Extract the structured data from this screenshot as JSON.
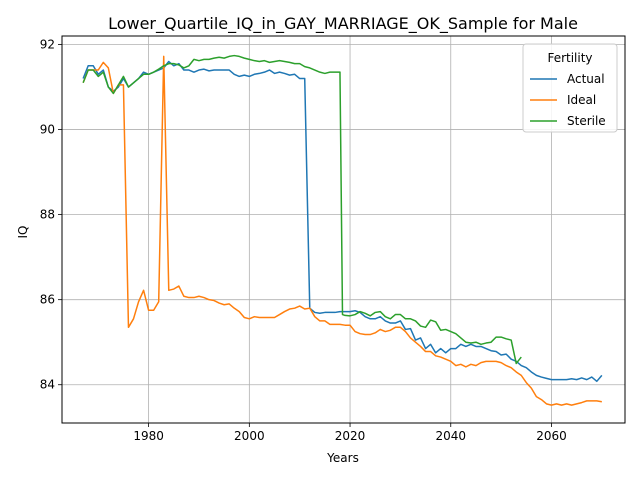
{
  "chart_data": {
    "type": "line",
    "title": "Lower_Quartile_IQ_in_GAY_MARRIAGE_OK_Sample for Male",
    "xlabel": "Years",
    "ylabel": "IQ",
    "xlim": [
      1962.8,
      2074.6
    ],
    "ylim": [
      83.1,
      92.2
    ],
    "xticks": [
      1980,
      2000,
      2020,
      2040,
      2060
    ],
    "yticks": [
      84,
      86,
      88,
      90,
      92
    ],
    "grid": true,
    "legend": {
      "title": "Fertility",
      "placement": "top-right"
    },
    "series": [
      {
        "name": "Actual",
        "color": "#1f77b4",
        "points": [
          [
            1967,
            91.2
          ],
          [
            1968,
            91.5
          ],
          [
            1969,
            91.5
          ],
          [
            1970,
            91.3
          ],
          [
            1971,
            91.4
          ],
          [
            1972,
            91.0
          ],
          [
            1973,
            90.9
          ],
          [
            1974,
            91.0
          ],
          [
            1975,
            91.2
          ],
          [
            1976,
            91.0
          ],
          [
            1977,
            91.1
          ],
          [
            1978,
            91.2
          ],
          [
            1979,
            91.35
          ],
          [
            1980,
            91.3
          ],
          [
            1981,
            91.35
          ],
          [
            1982,
            91.4
          ],
          [
            1983,
            91.45
          ],
          [
            1984,
            91.6
          ],
          [
            1985,
            91.5
          ],
          [
            1986,
            91.55
          ],
          [
            1987,
            91.4
          ],
          [
            1988,
            91.4
          ],
          [
            1989,
            91.35
          ],
          [
            1990,
            91.4
          ],
          [
            1991,
            91.42
          ],
          [
            1992,
            91.38
          ],
          [
            1993,
            91.4
          ],
          [
            1994,
            91.4
          ],
          [
            1995,
            91.4
          ],
          [
            1996,
            91.4
          ],
          [
            1997,
            91.3
          ],
          [
            1998,
            91.25
          ],
          [
            1999,
            91.28
          ],
          [
            2000,
            91.25
          ],
          [
            2001,
            91.3
          ],
          [
            2002,
            91.32
          ],
          [
            2003,
            91.35
          ],
          [
            2004,
            91.4
          ],
          [
            2005,
            91.32
          ],
          [
            2006,
            91.35
          ],
          [
            2007,
            91.32
          ],
          [
            2008,
            91.28
          ],
          [
            2009,
            91.3
          ],
          [
            2010,
            91.2
          ],
          [
            2011,
            91.2
          ],
          [
            2012,
            85.8
          ],
          [
            2013,
            85.7
          ],
          [
            2014,
            85.68
          ],
          [
            2015,
            85.7
          ],
          [
            2016,
            85.7
          ],
          [
            2017,
            85.7
          ],
          [
            2018,
            85.72
          ],
          [
            2019,
            85.72
          ],
          [
            2020,
            85.72
          ],
          [
            2021,
            85.74
          ],
          [
            2022,
            85.7
          ],
          [
            2023,
            85.6
          ],
          [
            2024,
            85.55
          ],
          [
            2025,
            85.55
          ],
          [
            2026,
            85.6
          ],
          [
            2027,
            85.5
          ],
          [
            2028,
            85.45
          ],
          [
            2029,
            85.45
          ],
          [
            2030,
            85.5
          ],
          [
            2031,
            85.3
          ],
          [
            2032,
            85.32
          ],
          [
            2033,
            85.05
          ],
          [
            2034,
            85.1
          ],
          [
            2035,
            84.85
          ],
          [
            2036,
            84.95
          ],
          [
            2037,
            84.75
          ],
          [
            2038,
            84.85
          ],
          [
            2039,
            84.75
          ],
          [
            2040,
            84.85
          ],
          [
            2041,
            84.85
          ],
          [
            2042,
            84.95
          ],
          [
            2043,
            84.9
          ],
          [
            2044,
            84.95
          ],
          [
            2045,
            84.9
          ],
          [
            2046,
            84.9
          ],
          [
            2047,
            84.85
          ],
          [
            2048,
            84.8
          ],
          [
            2049,
            84.78
          ],
          [
            2050,
            84.7
          ],
          [
            2051,
            84.72
          ],
          [
            2052,
            84.6
          ],
          [
            2053,
            84.55
          ],
          [
            2054,
            84.45
          ],
          [
            2055,
            84.4
          ],
          [
            2056,
            84.3
          ],
          [
            2057,
            84.22
          ],
          [
            2058,
            84.18
          ],
          [
            2059,
            84.15
          ],
          [
            2060,
            84.12
          ],
          [
            2061,
            84.12
          ],
          [
            2062,
            84.12
          ],
          [
            2063,
            84.12
          ],
          [
            2064,
            84.14
          ],
          [
            2065,
            84.12
          ],
          [
            2066,
            84.16
          ],
          [
            2067,
            84.12
          ],
          [
            2068,
            84.18
          ],
          [
            2069,
            84.08
          ],
          [
            2070,
            84.22
          ]
        ]
      },
      {
        "name": "Ideal",
        "color": "#ff7f0e",
        "points": [
          [
            1967,
            91.1
          ],
          [
            1968,
            91.4
          ],
          [
            1969,
            91.4
          ],
          [
            1970,
            91.4
          ],
          [
            1971,
            91.58
          ],
          [
            1972,
            91.45
          ],
          [
            1973,
            90.85
          ],
          [
            1974,
            91.05
          ],
          [
            1975,
            91.05
          ],
          [
            1976,
            85.35
          ],
          [
            1977,
            85.55
          ],
          [
            1978,
            85.95
          ],
          [
            1979,
            86.22
          ],
          [
            1980,
            85.75
          ],
          [
            1981,
            85.75
          ],
          [
            1982,
            85.95
          ],
          [
            1983,
            91.72
          ],
          [
            1984,
            86.22
          ],
          [
            1985,
            86.25
          ],
          [
            1986,
            86.32
          ],
          [
            1987,
            86.08
          ],
          [
            1988,
            86.05
          ],
          [
            1989,
            86.05
          ],
          [
            1990,
            86.08
          ],
          [
            1991,
            86.05
          ],
          [
            1992,
            86.0
          ],
          [
            1993,
            85.98
          ],
          [
            1994,
            85.92
          ],
          [
            1995,
            85.88
          ],
          [
            1996,
            85.9
          ],
          [
            1997,
            85.8
          ],
          [
            1998,
            85.72
          ],
          [
            1999,
            85.58
          ],
          [
            2000,
            85.55
          ],
          [
            2001,
            85.6
          ],
          [
            2002,
            85.58
          ],
          [
            2003,
            85.58
          ],
          [
            2004,
            85.58
          ],
          [
            2005,
            85.58
          ],
          [
            2006,
            85.65
          ],
          [
            2007,
            85.72
          ],
          [
            2008,
            85.78
          ],
          [
            2009,
            85.8
          ],
          [
            2010,
            85.85
          ],
          [
            2011,
            85.78
          ],
          [
            2012,
            85.8
          ],
          [
            2013,
            85.6
          ],
          [
            2014,
            85.5
          ],
          [
            2015,
            85.5
          ],
          [
            2016,
            85.42
          ],
          [
            2017,
            85.42
          ],
          [
            2018,
            85.42
          ],
          [
            2019,
            85.4
          ],
          [
            2020,
            85.4
          ],
          [
            2021,
            85.25
          ],
          [
            2022,
            85.2
          ],
          [
            2023,
            85.18
          ],
          [
            2024,
            85.18
          ],
          [
            2025,
            85.22
          ],
          [
            2026,
            85.3
          ],
          [
            2027,
            85.25
          ],
          [
            2028,
            85.28
          ],
          [
            2029,
            85.35
          ],
          [
            2030,
            85.35
          ],
          [
            2031,
            85.25
          ],
          [
            2032,
            85.1
          ],
          [
            2033,
            85.0
          ],
          [
            2034,
            84.9
          ],
          [
            2035,
            84.78
          ],
          [
            2036,
            84.78
          ],
          [
            2037,
            84.68
          ],
          [
            2038,
            84.65
          ],
          [
            2039,
            84.6
          ],
          [
            2040,
            84.55
          ],
          [
            2041,
            84.45
          ],
          [
            2042,
            84.48
          ],
          [
            2043,
            84.42
          ],
          [
            2044,
            84.48
          ],
          [
            2045,
            84.45
          ],
          [
            2046,
            84.52
          ],
          [
            2047,
            84.55
          ],
          [
            2048,
            84.55
          ],
          [
            2049,
            84.55
          ],
          [
            2050,
            84.52
          ],
          [
            2051,
            84.45
          ],
          [
            2052,
            84.4
          ],
          [
            2053,
            84.3
          ],
          [
            2054,
            84.22
          ],
          [
            2055,
            84.05
          ],
          [
            2056,
            83.92
          ],
          [
            2057,
            83.72
          ],
          [
            2058,
            83.65
          ],
          [
            2059,
            83.55
          ],
          [
            2060,
            83.52
          ],
          [
            2061,
            83.55
          ],
          [
            2062,
            83.52
          ],
          [
            2063,
            83.55
          ],
          [
            2064,
            83.52
          ],
          [
            2065,
            83.55
          ],
          [
            2066,
            83.58
          ],
          [
            2067,
            83.62
          ],
          [
            2068,
            83.62
          ],
          [
            2069,
            83.62
          ],
          [
            2070,
            83.6
          ]
        ]
      },
      {
        "name": "Sterile",
        "color": "#2ca02c",
        "points": [
          [
            1967,
            91.1
          ],
          [
            1968,
            91.4
          ],
          [
            1969,
            91.4
          ],
          [
            1970,
            91.25
          ],
          [
            1971,
            91.35
          ],
          [
            1972,
            91.0
          ],
          [
            1973,
            90.85
          ],
          [
            1974,
            91.05
          ],
          [
            1975,
            91.25
          ],
          [
            1976,
            91.0
          ],
          [
            1977,
            91.1
          ],
          [
            1978,
            91.2
          ],
          [
            1979,
            91.3
          ],
          [
            1980,
            91.3
          ],
          [
            1981,
            91.35
          ],
          [
            1982,
            91.42
          ],
          [
            1983,
            91.5
          ],
          [
            1984,
            91.55
          ],
          [
            1985,
            91.55
          ],
          [
            1986,
            91.52
          ],
          [
            1987,
            91.45
          ],
          [
            1988,
            91.5
          ],
          [
            1989,
            91.65
          ],
          [
            1990,
            91.62
          ],
          [
            1991,
            91.65
          ],
          [
            1992,
            91.65
          ],
          [
            1993,
            91.68
          ],
          [
            1994,
            91.7
          ],
          [
            1995,
            91.68
          ],
          [
            1996,
            91.72
          ],
          [
            1997,
            91.74
          ],
          [
            1998,
            91.72
          ],
          [
            1999,
            91.68
          ],
          [
            2000,
            91.65
          ],
          [
            2001,
            91.62
          ],
          [
            2002,
            91.6
          ],
          [
            2003,
            91.62
          ],
          [
            2004,
            91.58
          ],
          [
            2005,
            91.6
          ],
          [
            2006,
            91.62
          ],
          [
            2007,
            91.6
          ],
          [
            2008,
            91.58
          ],
          [
            2009,
            91.55
          ],
          [
            2010,
            91.55
          ],
          [
            2011,
            91.48
          ],
          [
            2012,
            91.45
          ],
          [
            2013,
            91.4
          ],
          [
            2014,
            91.35
          ],
          [
            2015,
            91.32
          ],
          [
            2016,
            91.35
          ],
          [
            2017,
            91.35
          ],
          [
            2018,
            91.35
          ],
          [
            2018.5,
            85.65
          ],
          [
            2019,
            85.63
          ],
          [
            2020,
            85.62
          ],
          [
            2021,
            85.65
          ],
          [
            2022,
            85.72
          ],
          [
            2023,
            85.68
          ],
          [
            2024,
            85.62
          ],
          [
            2025,
            85.7
          ],
          [
            2026,
            85.72
          ],
          [
            2027,
            85.6
          ],
          [
            2028,
            85.55
          ],
          [
            2029,
            85.65
          ],
          [
            2030,
            85.65
          ],
          [
            2031,
            85.55
          ],
          [
            2032,
            85.55
          ],
          [
            2033,
            85.5
          ],
          [
            2034,
            85.38
          ],
          [
            2035,
            85.35
          ],
          [
            2036,
            85.52
          ],
          [
            2037,
            85.48
          ],
          [
            2038,
            85.28
          ],
          [
            2039,
            85.3
          ],
          [
            2040,
            85.25
          ],
          [
            2041,
            85.2
          ],
          [
            2042,
            85.1
          ],
          [
            2043,
            85.0
          ],
          [
            2044,
            84.98
          ],
          [
            2045,
            85.0
          ],
          [
            2046,
            84.95
          ],
          [
            2047,
            84.98
          ],
          [
            2048,
            85.0
          ],
          [
            2049,
            85.12
          ],
          [
            2050,
            85.12
          ],
          [
            2051,
            85.08
          ],
          [
            2052,
            85.05
          ],
          [
            2053,
            84.5
          ],
          [
            2054,
            84.65
          ]
        ]
      }
    ]
  }
}
